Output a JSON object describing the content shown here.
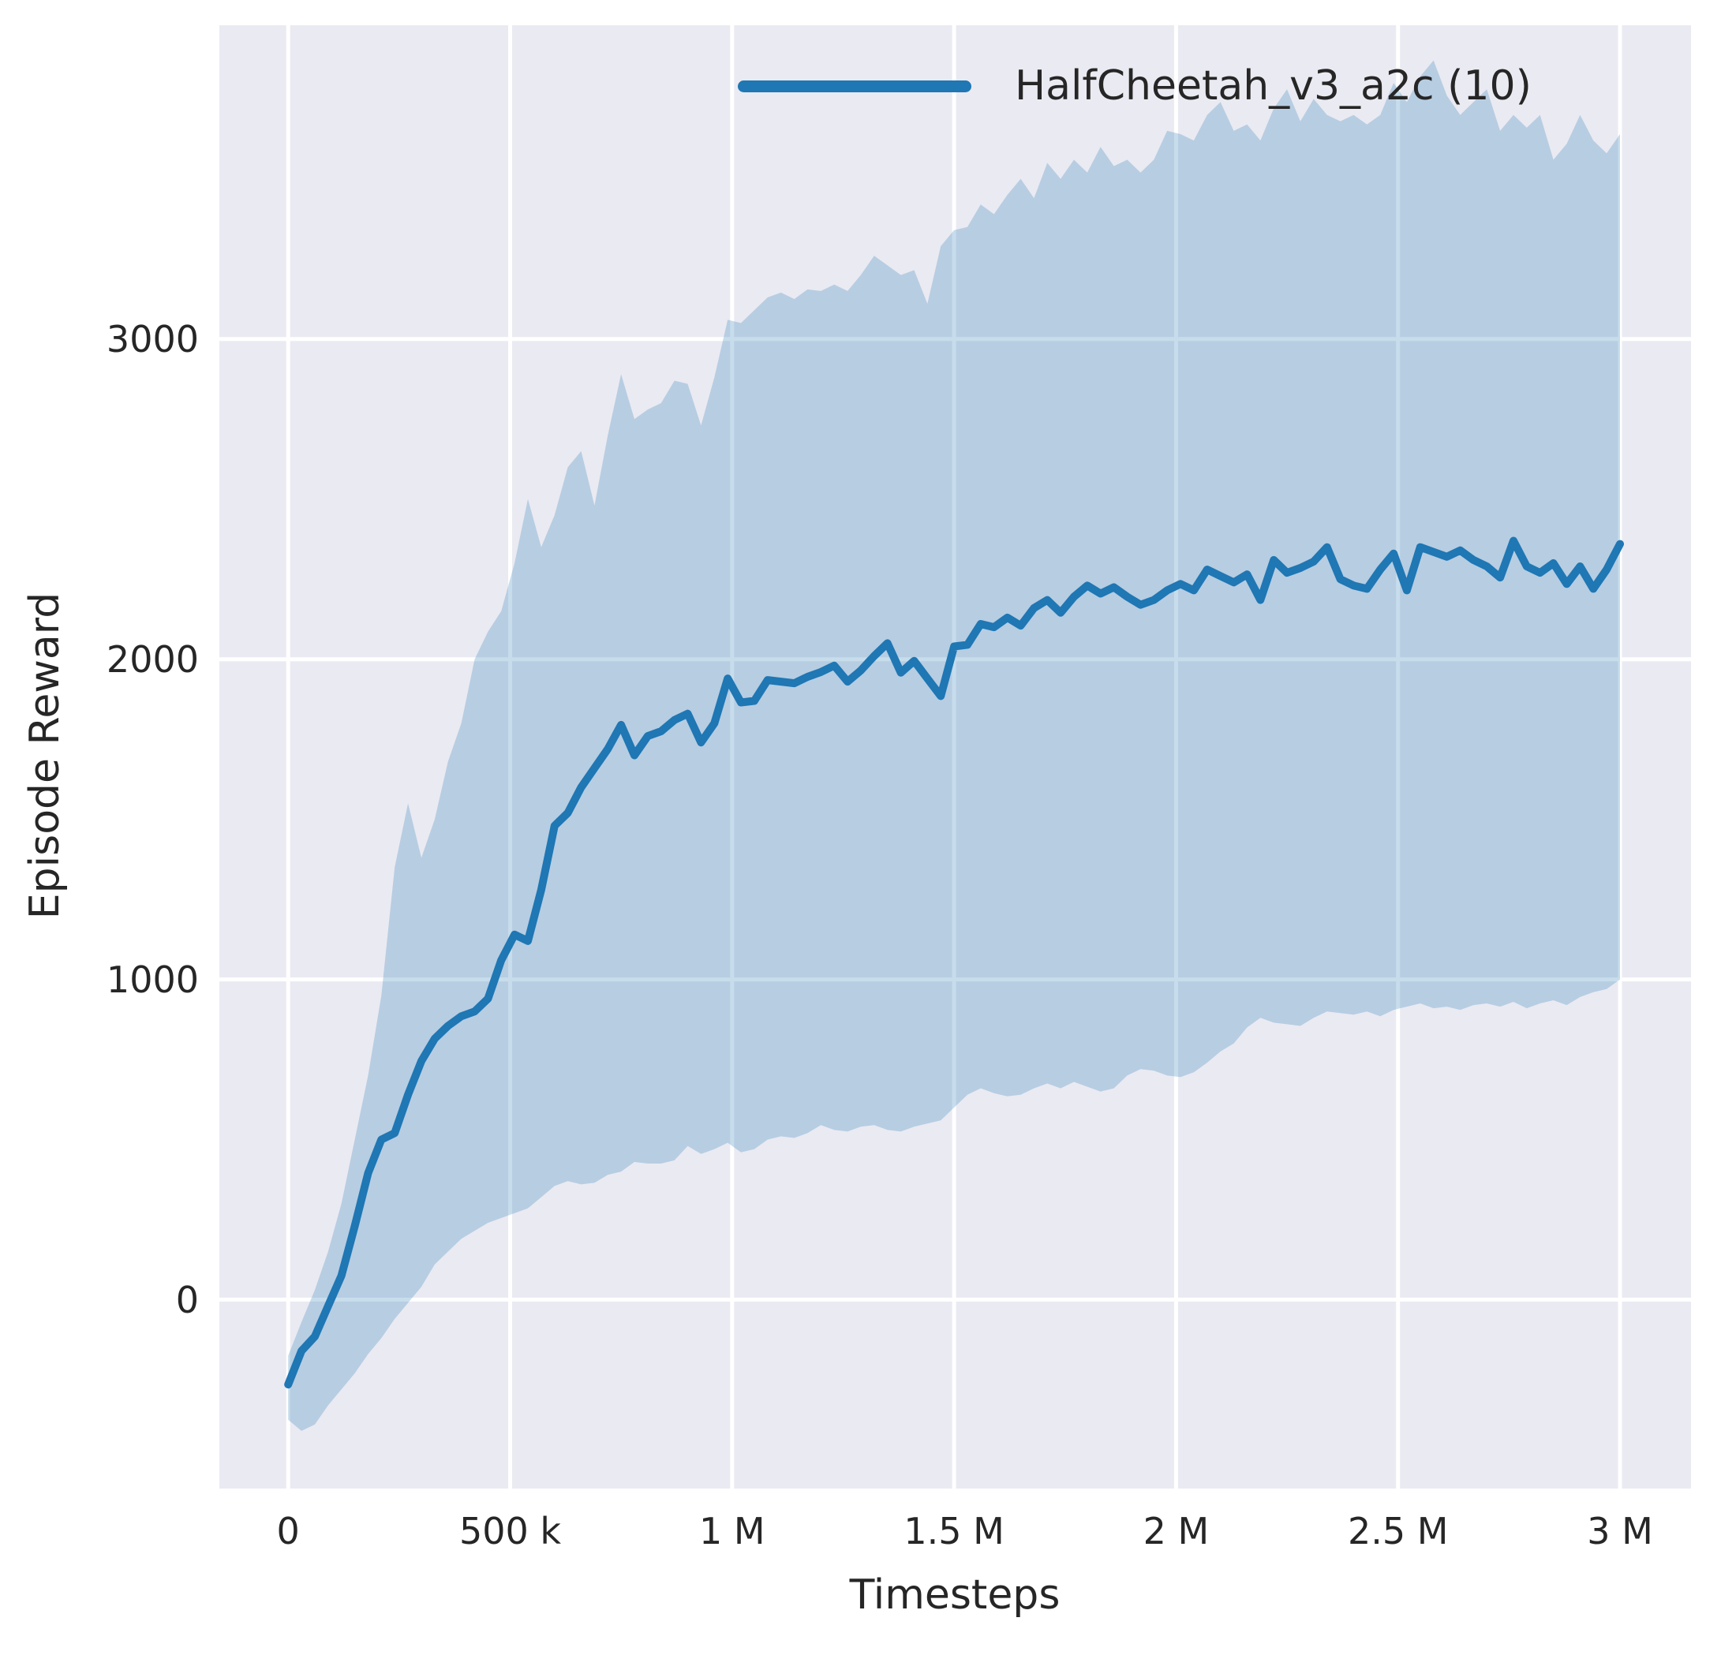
{
  "chart_data": {
    "type": "line",
    "title": "",
    "xlabel": "Timesteps",
    "ylabel": "Episode Reward",
    "grid": true,
    "legend_position": "upper right",
    "plot_background": "#eaeaf2",
    "grid_color": "#ffffff",
    "line_color": "#1f77b4",
    "band_color": "#1f77b4",
    "band_alpha": 0.25,
    "xlim": [
      -155000,
      3160000
    ],
    "ylim": [
      -590,
      3980
    ],
    "xticks": {
      "values": [
        0,
        500000,
        1000000,
        1500000,
        2000000,
        2500000,
        3000000
      ],
      "labels": [
        "0",
        "500 k",
        "1 M",
        "1.5 M",
        "2 M",
        "2.5 M",
        "3 M"
      ]
    },
    "yticks": {
      "values": [
        0,
        1000,
        2000,
        3000
      ],
      "labels": [
        "0",
        "1000",
        "2000",
        "3000"
      ]
    },
    "legend": [
      {
        "label": "HalfCheetah_v3_a2c (10)",
        "color": "#1f77b4"
      }
    ],
    "series": [
      {
        "name": "HalfCheetah_v3_a2c (10)",
        "x_start": 0,
        "x_step": 30000,
        "x_end": 3000000,
        "mean": [
          -265,
          -160,
          -115,
          -20,
          75,
          230,
          395,
          500,
          520,
          640,
          745,
          815,
          855,
          885,
          900,
          940,
          1060,
          1140,
          1120,
          1280,
          1480,
          1520,
          1600,
          1660,
          1720,
          1795,
          1700,
          1760,
          1775,
          1810,
          1830,
          1740,
          1800,
          1940,
          1865,
          1870,
          1935,
          1930,
          1925,
          1945,
          1960,
          1980,
          1930,
          1965,
          2010,
          2050,
          1958,
          1995,
          1940,
          1885,
          2040,
          2045,
          2110,
          2100,
          2130,
          2105,
          2160,
          2185,
          2145,
          2195,
          2230,
          2205,
          2225,
          2195,
          2170,
          2185,
          2215,
          2235,
          2215,
          2280,
          2260,
          2240,
          2265,
          2185,
          2310,
          2270,
          2285,
          2305,
          2350,
          2250,
          2230,
          2220,
          2280,
          2330,
          2215,
          2350,
          2335,
          2320,
          2340,
          2310,
          2290,
          2255,
          2370,
          2290,
          2270,
          2300,
          2235,
          2290,
          2220,
          2280,
          2360
        ],
        "upper": [
          -175,
          -70,
          30,
          150,
          300,
          500,
          700,
          950,
          1350,
          1550,
          1380,
          1500,
          1680,
          1800,
          2000,
          2086,
          2150,
          2300,
          2500,
          2350,
          2450,
          2600,
          2650,
          2480,
          2700,
          2890,
          2750,
          2780,
          2800,
          2870,
          2860,
          2730,
          2880,
          3060,
          3050,
          3090,
          3130,
          3145,
          3125,
          3155,
          3150,
          3170,
          3150,
          3200,
          3260,
          3230,
          3200,
          3215,
          3110,
          3290,
          3340,
          3350,
          3420,
          3390,
          3450,
          3500,
          3440,
          3550,
          3500,
          3560,
          3520,
          3600,
          3540,
          3560,
          3520,
          3560,
          3650,
          3640,
          3620,
          3700,
          3740,
          3650,
          3670,
          3620,
          3720,
          3780,
          3680,
          3750,
          3700,
          3680,
          3700,
          3670,
          3700,
          3800,
          3740,
          3820,
          3870,
          3760,
          3700,
          3740,
          3780,
          3650,
          3700,
          3660,
          3700,
          3560,
          3610,
          3700,
          3620,
          3580,
          3640
        ],
        "lower": [
          -375,
          -410,
          -390,
          -330,
          -280,
          -230,
          -170,
          -120,
          -60,
          -10,
          40,
          110,
          150,
          190,
          215,
          240,
          255,
          270,
          285,
          320,
          355,
          370,
          360,
          365,
          390,
          400,
          430,
          425,
          425,
          435,
          480,
          455,
          470,
          490,
          460,
          470,
          500,
          510,
          505,
          520,
          545,
          530,
          525,
          540,
          545,
          530,
          525,
          540,
          550,
          560,
          600,
          640,
          660,
          645,
          635,
          640,
          660,
          675,
          660,
          680,
          665,
          650,
          660,
          700,
          720,
          715,
          700,
          695,
          710,
          740,
          775,
          800,
          850,
          880,
          865,
          860,
          855,
          880,
          900,
          895,
          890,
          900,
          885,
          905,
          915,
          925,
          910,
          915,
          905,
          920,
          925,
          915,
          930,
          910,
          925,
          935,
          920,
          945,
          960,
          970,
          1000
        ]
      }
    ]
  }
}
